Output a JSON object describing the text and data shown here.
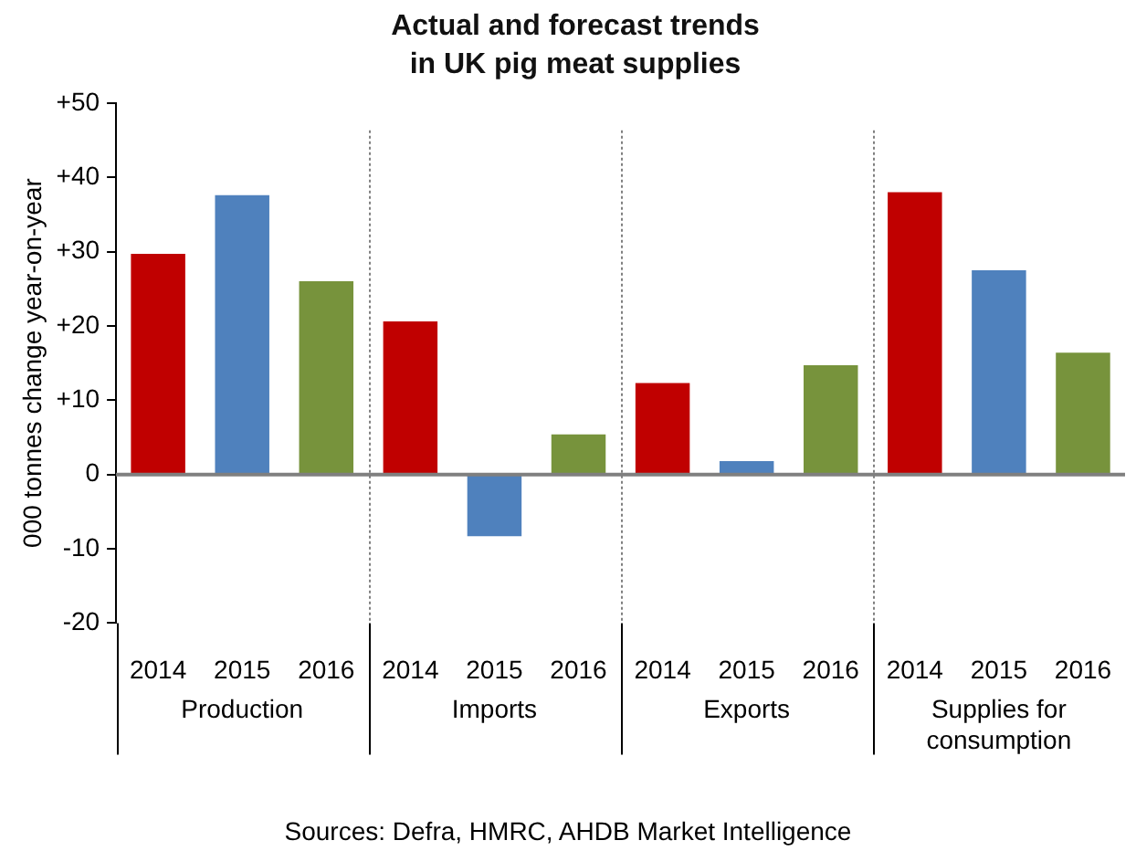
{
  "chart_data": {
    "type": "bar",
    "title": "Actual and forecast trends in UK pig meat supplies",
    "ylabel": "000 tonnes change year-on-year",
    "categories": [
      "2014",
      "2015",
      "2016",
      "2014",
      "2015",
      "2016",
      "2014",
      "2015",
      "2016",
      "2014",
      "2015",
      "2016"
    ],
    "values": [
      29.7,
      37.6,
      26.0,
      20.6,
      -8.3,
      5.4,
      12.3,
      1.8,
      14.7,
      38.0,
      27.5,
      16.4
    ],
    "colors": [
      "#c00000",
      "#4f81bd",
      "#77933c",
      "#c00000",
      "#4f81bd",
      "#77933c",
      "#c00000",
      "#4f81bd",
      "#77933c",
      "#c00000",
      "#4f81bd",
      "#77933c"
    ],
    "ylim": [
      -20,
      50
    ],
    "yticks": [
      {
        "value": -20,
        "label": "-20"
      },
      {
        "value": -10,
        "label": "-10"
      },
      0,
      {
        "value": 10,
        "label": "+10"
      },
      {
        "value": 20,
        "label": "+20"
      },
      {
        "value": 30,
        "label": "+30"
      },
      {
        "value": 40,
        "label": "+40"
      },
      {
        "value": 50,
        "label": "+50"
      }
    ],
    "grid": "x",
    "legend": false,
    "annotations": [
      "Production",
      "Imports",
      "Exports",
      "Supplies for consumption",
      "Sources: Defra, HMRC, AHDB Market Intelligence"
    ]
  }
}
